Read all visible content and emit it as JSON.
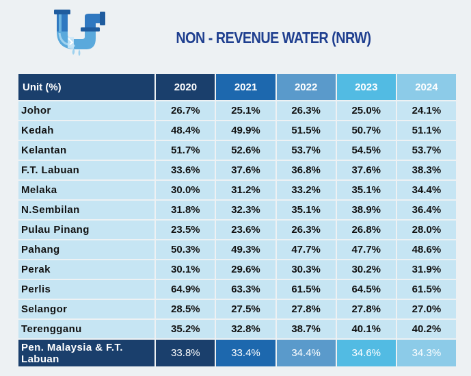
{
  "title": "NON - REVENUE WATER (NRW)",
  "icon": {
    "name": "water-pipe-icon",
    "colors": [
      "#2f78c0",
      "#6ab3e0",
      "#9fd2ef"
    ]
  },
  "colors": {
    "header": [
      "#1a3f6c",
      "#1d68ae",
      "#5a9acb",
      "#52bbe3",
      "#8ccbe8"
    ],
    "cell_bg": "#c6e5f3",
    "title": "#1f3f8f"
  },
  "table": {
    "header": {
      "unit": "Unit (%)",
      "years": [
        "2020",
        "2021",
        "2022",
        "2023",
        "2024"
      ]
    },
    "rows": [
      {
        "state": "Johor",
        "values": [
          "26.7%",
          "25.1%",
          "26.3%",
          "25.0%",
          "24.1%"
        ]
      },
      {
        "state": "Kedah",
        "values": [
          "48.4%",
          "49.9%",
          "51.5%",
          "50.7%",
          "51.1%"
        ]
      },
      {
        "state": "Kelantan",
        "values": [
          "51.7%",
          "52.6%",
          "53.7%",
          "54.5%",
          "53.7%"
        ]
      },
      {
        "state": "F.T. Labuan",
        "values": [
          "33.6%",
          "37.6%",
          "36.8%",
          "37.6%",
          "38.3%"
        ]
      },
      {
        "state": "Melaka",
        "values": [
          "30.0%",
          "31.2%",
          "33.2%",
          "35.1%",
          "34.4%"
        ]
      },
      {
        "state": "N.Sembilan",
        "values": [
          "31.8%",
          "32.3%",
          "35.1%",
          "38.9%",
          "36.4%"
        ]
      },
      {
        "state": "Pulau Pinang",
        "values": [
          "23.5%",
          "23.6%",
          "26.3%",
          "26.8%",
          "28.0%"
        ]
      },
      {
        "state": "Pahang",
        "values": [
          "50.3%",
          "49.3%",
          "47.7%",
          "47.7%",
          "48.6%"
        ]
      },
      {
        "state": "Perak",
        "values": [
          "30.1%",
          "29.6%",
          "30.3%",
          "30.2%",
          "31.9%"
        ]
      },
      {
        "state": "Perlis",
        "values": [
          "64.9%",
          "63.3%",
          "61.5%",
          "64.5%",
          "61.5%"
        ]
      },
      {
        "state": "Selangor",
        "values": [
          "28.5%",
          "27.5%",
          "27.8%",
          "27.8%",
          "27.0%"
        ]
      },
      {
        "state": "Terengganu",
        "values": [
          "35.2%",
          "32.8%",
          "38.7%",
          "40.1%",
          "40.2%"
        ]
      }
    ],
    "total": {
      "state": "Pen. Malaysia & F.T. Labuan",
      "values": [
        "33.8%",
        "33.4%",
        "34.4%",
        "34.6%",
        "34.3%"
      ]
    }
  }
}
